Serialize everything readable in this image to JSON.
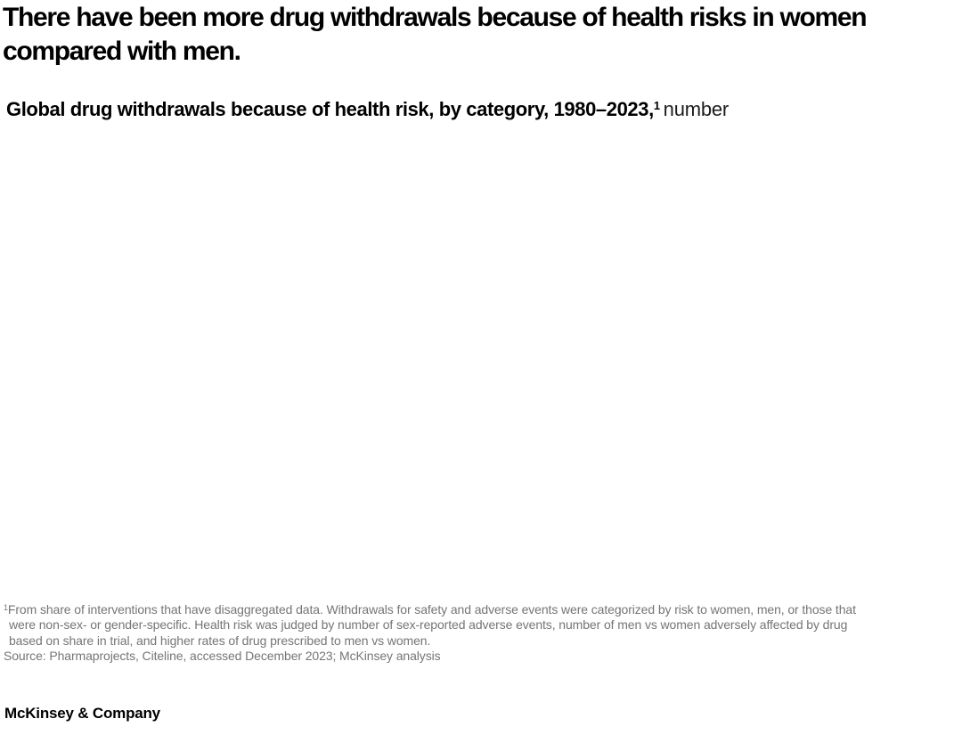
{
  "page": {
    "background_color": "#ffffff",
    "title_color": "#000000",
    "footnote_color": "#757575"
  },
  "header": {
    "title_lines": [
      "There have been more drug withdrawals because of health risks in women",
      "compared with men."
    ],
    "subtitle": {
      "bold": "Global drug withdrawals because of health risk, by category, 1980–2023,",
      "footnote_marker": "1",
      "unit": "number"
    }
  },
  "chart_data": {
    "type": "none",
    "title": "Global drug withdrawals because of health risk, by category, 1980–2023, number",
    "series": [],
    "note": "The plot area of this exhibit is rendered blank in the screenshot — no axes, gridlines, bars, data labels, or legend are visible."
  },
  "footnote": {
    "marker": "1",
    "lines": [
      "From share of interventions that have disaggregated data. Withdrawals for safety and adverse events were categorized by risk to women, men, or those that",
      "were non-sex- or gender-specific. Health risk was judged by number of sex-reported adverse events, number of men vs women adversely affected by drug",
      "based on share in trial, and higher rates of drug prescribed to men vs women."
    ],
    "source": "Source: Pharmaprojects, Citeline, accessed December 2023; McKinsey analysis"
  },
  "footer": {
    "brand": "McKinsey & Company"
  }
}
